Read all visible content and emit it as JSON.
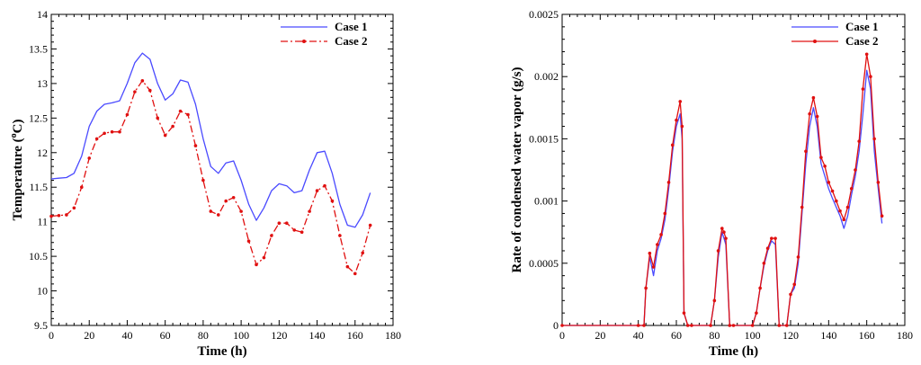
{
  "chart_data": [
    {
      "type": "line",
      "xlabel": "Time (h)",
      "ylabel": "Temperature (°C)",
      "ylabel_main": "Temperature (",
      "ylabel_sup": "o",
      "ylabel_unit": "C)",
      "xlim": [
        0,
        180
      ],
      "ylim": [
        9.5,
        14
      ],
      "xticks": [
        "0",
        "20",
        "40",
        "60",
        "80",
        "100",
        "120",
        "140",
        "160",
        "180"
      ],
      "yticks": [
        "9.5",
        "10",
        "10.5",
        "11",
        "11.5",
        "12",
        "12.5",
        "13",
        "13.5",
        "14"
      ],
      "legend_position": "top-right",
      "grid": false,
      "series": [
        {
          "name": "Case 1",
          "color": "#4a4aff",
          "style": "solid",
          "x": [
            0,
            4,
            8,
            12,
            16,
            20,
            24,
            28,
            32,
            36,
            40,
            44,
            48,
            52,
            56,
            60,
            64,
            68,
            72,
            76,
            80,
            84,
            88,
            92,
            96,
            100,
            104,
            108,
            112,
            116,
            120,
            124,
            128,
            132,
            136,
            140,
            144,
            148,
            152,
            156,
            160,
            164,
            168
          ],
          "values": [
            11.62,
            11.63,
            11.64,
            11.7,
            11.95,
            12.38,
            12.6,
            12.7,
            12.72,
            12.75,
            13.0,
            13.3,
            13.44,
            13.35,
            13.0,
            12.76,
            12.85,
            13.05,
            13.02,
            12.7,
            12.2,
            11.8,
            11.7,
            11.85,
            11.88,
            11.6,
            11.25,
            11.02,
            11.2,
            11.45,
            11.55,
            11.52,
            11.42,
            11.45,
            11.75,
            12.0,
            12.02,
            11.7,
            11.25,
            10.95,
            10.92,
            11.1,
            11.42
          ]
        },
        {
          "name": "Case 2",
          "color": "#e01010",
          "style": "dash-dot-marker",
          "x": [
            0,
            4,
            8,
            12,
            16,
            20,
            24,
            28,
            32,
            36,
            40,
            44,
            48,
            52,
            56,
            60,
            64,
            68,
            72,
            76,
            80,
            84,
            88,
            92,
            96,
            100,
            104,
            108,
            112,
            116,
            120,
            124,
            128,
            132,
            136,
            140,
            144,
            148,
            152,
            156,
            160,
            164,
            168
          ],
          "values": [
            11.08,
            11.09,
            11.1,
            11.2,
            11.5,
            11.92,
            12.2,
            12.28,
            12.3,
            12.3,
            12.55,
            12.88,
            13.04,
            12.9,
            12.5,
            12.25,
            12.38,
            12.6,
            12.55,
            12.1,
            11.6,
            11.15,
            11.1,
            11.3,
            11.35,
            11.15,
            10.72,
            10.38,
            10.48,
            10.8,
            10.98,
            10.98,
            10.88,
            10.85,
            11.15,
            11.45,
            11.52,
            11.3,
            10.8,
            10.35,
            10.25,
            10.55,
            10.95
          ]
        }
      ]
    },
    {
      "type": "line",
      "xlabel": "Time (h)",
      "ylabel": "Rate of condensed water vapor (g/s)",
      "xlim": [
        0,
        180
      ],
      "ylim": [
        0,
        0.0025
      ],
      "xticks": [
        "0",
        "20",
        "40",
        "60",
        "80",
        "100",
        "120",
        "140",
        "160",
        "180"
      ],
      "yticks": [
        "0",
        "0.0005",
        "0.001",
        "0.0015",
        "0.002",
        "0.0025"
      ],
      "legend_position": "top-right",
      "grid": false,
      "series": [
        {
          "name": "Case 1",
          "color": "#4a4aff",
          "style": "solid",
          "x": [
            0,
            40,
            43,
            44,
            46,
            48,
            50,
            52,
            54,
            56,
            58,
            60,
            62,
            63,
            64,
            66,
            68,
            78,
            80,
            82,
            84,
            85,
            86,
            88,
            90,
            100,
            102,
            104,
            106,
            108,
            110,
            112,
            114,
            118,
            120,
            122,
            124,
            126,
            128,
            130,
            132,
            134,
            136,
            138,
            140,
            142,
            144,
            146,
            148,
            150,
            152,
            154,
            156,
            158,
            160,
            162,
            164,
            166,
            168
          ],
          "values": [
            0,
            0,
            0,
            0.0003,
            0.00055,
            0.0004,
            0.0006,
            0.0007,
            0.00085,
            0.0011,
            0.0014,
            0.0016,
            0.0017,
            0.0015,
            0.0001,
            0,
            0,
            0,
            0.0002,
            0.00055,
            0.00075,
            0.0007,
            0.00065,
            0,
            0,
            0,
            0.0001,
            0.0003,
            0.00048,
            0.0006,
            0.00068,
            0.00065,
            0,
            0,
            0.00025,
            0.0003,
            0.0005,
            0.0009,
            0.0013,
            0.0016,
            0.00175,
            0.0016,
            0.0013,
            0.0012,
            0.0011,
            0.00102,
            0.00095,
            0.00088,
            0.00078,
            0.00088,
            0.00105,
            0.0012,
            0.0014,
            0.0017,
            0.00205,
            0.0019,
            0.0014,
            0.0011,
            0.00082
          ]
        },
        {
          "name": "Case 2",
          "color": "#e01010",
          "style": "solid-marker",
          "x": [
            0,
            40,
            43,
            44,
            46,
            48,
            50,
            52,
            54,
            56,
            58,
            60,
            62,
            63,
            64,
            66,
            68,
            78,
            80,
            82,
            84,
            85,
            86,
            88,
            90,
            100,
            102,
            104,
            106,
            108,
            110,
            112,
            114,
            118,
            120,
            122,
            124,
            126,
            128,
            130,
            132,
            134,
            136,
            138,
            140,
            142,
            144,
            146,
            148,
            150,
            152,
            154,
            156,
            158,
            160,
            162,
            164,
            166,
            168
          ],
          "values": [
            0,
            0,
            0,
            0.0003,
            0.00058,
            0.00047,
            0.00065,
            0.00073,
            0.0009,
            0.00115,
            0.00145,
            0.00165,
            0.0018,
            0.0016,
            0.0001,
            0,
            0,
            0,
            0.0002,
            0.0006,
            0.00078,
            0.00075,
            0.0007,
            0,
            0,
            0,
            0.0001,
            0.0003,
            0.0005,
            0.00062,
            0.0007,
            0.0007,
            0,
            0,
            0.00025,
            0.00033,
            0.00055,
            0.00095,
            0.0014,
            0.0017,
            0.00183,
            0.00168,
            0.00135,
            0.00128,
            0.00115,
            0.00108,
            0.001,
            0.00092,
            0.00085,
            0.00095,
            0.0011,
            0.00125,
            0.00148,
            0.0019,
            0.00218,
            0.002,
            0.0015,
            0.00115,
            0.00088
          ]
        }
      ]
    }
  ]
}
